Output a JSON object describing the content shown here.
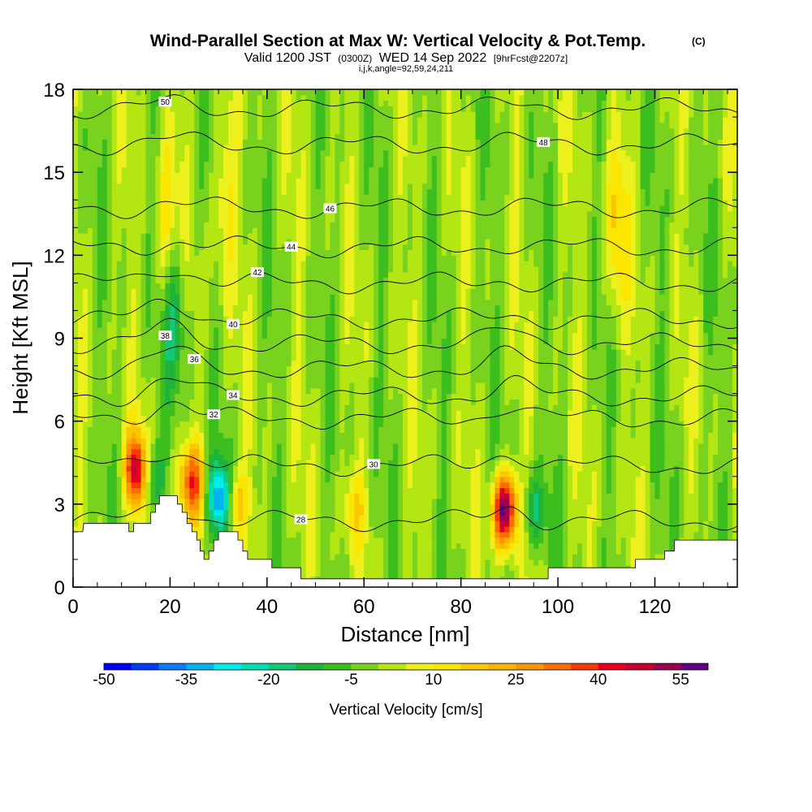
{
  "chart_data": {
    "type": "heatmap",
    "title": "Wind-Parallel Section at Max W: Vertical Velocity & Pot.Temp.",
    "title_mark": "(C)",
    "subtitle_main_a": "Valid 1200 JST",
    "subtitle_small_a": "(0300Z)",
    "subtitle_main_b": "WED 14 Sep 2022",
    "subtitle_small_b": "[9hrFcst@2207z]",
    "subtitle2": "i,j,k,angle=92,59,24,211",
    "xlabel": "Distance [nm]",
    "ylabel": "Height [Kft MSL]",
    "xlim": [
      0,
      137
    ],
    "ylim": [
      0,
      18
    ],
    "xticks": [
      "0",
      "20",
      "40",
      "60",
      "80",
      "100",
      "120"
    ],
    "yticks": [
      "0",
      "3",
      "6",
      "9",
      "12",
      "15",
      "18"
    ],
    "colorbar": {
      "label": "Vertical Velocity [cm/s]",
      "min": -50,
      "max": 60,
      "step": 5,
      "tick_labels": [
        "-50",
        "-35",
        "-20",
        "-5",
        "10",
        "25",
        "40",
        "55"
      ],
      "colors": [
        "#0000ff",
        "#0040f5",
        "#0a7cf5",
        "#00b4f0",
        "#00ecec",
        "#00dcb4",
        "#14c878",
        "#1eb43c",
        "#3cbe1e",
        "#78d21e",
        "#b4e614",
        "#eef01e",
        "#fae600",
        "#fac800",
        "#fab400",
        "#fa9600",
        "#fa6e00",
        "#f53c00",
        "#e6001e",
        "#c80032",
        "#a00050",
        "#640082"
      ]
    },
    "background_w": 0,
    "features": [
      {
        "kind": "updraft",
        "x": 13.2,
        "z": 4.2,
        "w": 50
      },
      {
        "kind": "downdraft",
        "x": 15.8,
        "z": 4.0,
        "w": -20
      },
      {
        "kind": "updraft",
        "x": 24.5,
        "z": 3.8,
        "w": 35
      },
      {
        "kind": "downdraft",
        "x": 30.2,
        "z": 3.2,
        "w": -35
      },
      {
        "kind": "updraft",
        "x": 33.5,
        "z": 3.0,
        "w": 20
      },
      {
        "kind": "updraft",
        "x": 58.0,
        "z": 2.8,
        "w": 12
      },
      {
        "kind": "updraft",
        "x": 89.0,
        "z": 2.8,
        "w": 60
      },
      {
        "kind": "downdraft",
        "x": 95.0,
        "z": 2.8,
        "w": -15
      },
      {
        "kind": "updraft",
        "x": 112.0,
        "z": 13.0,
        "w": 14
      },
      {
        "kind": "updraft",
        "x": 19.5,
        "z": 13.0,
        "w": 15
      },
      {
        "kind": "updraft",
        "x": 31.0,
        "z": 14.0,
        "w": 12
      },
      {
        "kind": "downdraft",
        "x": 21.0,
        "z": 10.0,
        "w": -18
      }
    ],
    "theta_contours": [
      {
        "label": "28",
        "base_z": 2.4
      },
      {
        "label": "30",
        "base_z": 4.4
      },
      {
        "label": "32",
        "base_z": 6.1
      },
      {
        "label": "34",
        "base_z": 6.9
      },
      {
        "label": "36",
        "base_z": 7.9
      },
      {
        "label": "38",
        "base_z": 8.8
      },
      {
        "label": "40",
        "base_z": 9.7
      },
      {
        "label": "42",
        "base_z": 11.0
      },
      {
        "label": "44",
        "base_z": 12.3
      },
      {
        "label": "46",
        "base_z": 13.7
      },
      {
        "label": "48",
        "base_z": 16.0
      },
      {
        "label": "50",
        "base_z": 17.3
      }
    ],
    "terrain": [
      [
        0,
        2.0
      ],
      [
        2,
        2.0
      ],
      [
        2.2,
        2.3
      ],
      [
        11.5,
        2.3
      ],
      [
        11.5,
        2.0
      ],
      [
        12.5,
        2.0
      ],
      [
        12.5,
        2.3
      ],
      [
        16,
        2.3
      ],
      [
        16,
        2.7
      ],
      [
        17,
        2.7
      ],
      [
        17,
        3.0
      ],
      [
        17.8,
        3.0
      ],
      [
        17.8,
        3.3
      ],
      [
        21.5,
        3.3
      ],
      [
        21.5,
        3.0
      ],
      [
        22.5,
        3.0
      ],
      [
        22.5,
        2.7
      ],
      [
        23.5,
        2.7
      ],
      [
        23.5,
        2.3
      ],
      [
        24.5,
        2.3
      ],
      [
        24.5,
        2.0
      ],
      [
        25.5,
        2.0
      ],
      [
        25.5,
        1.7
      ],
      [
        26.2,
        1.7
      ],
      [
        26.2,
        1.3
      ],
      [
        27,
        1.3
      ],
      [
        27,
        1.0
      ],
      [
        28,
        1.0
      ],
      [
        28,
        1.3
      ],
      [
        29,
        1.3
      ],
      [
        29,
        1.7
      ],
      [
        30,
        1.7
      ],
      [
        30,
        2.0
      ],
      [
        34,
        2.0
      ],
      [
        34,
        1.7
      ],
      [
        35,
        1.7
      ],
      [
        35,
        1.3
      ],
      [
        36,
        1.3
      ],
      [
        36,
        1.0
      ],
      [
        41,
        1.0
      ],
      [
        41,
        0.7
      ],
      [
        47,
        0.7
      ],
      [
        47,
        0.3
      ],
      [
        85,
        0.3
      ],
      [
        85,
        0.3
      ],
      [
        98,
        0.3
      ],
      [
        98,
        0.7
      ],
      [
        116,
        0.7
      ],
      [
        116,
        1.0
      ],
      [
        122,
        1.0
      ],
      [
        122,
        1.3
      ],
      [
        124,
        1.3
      ],
      [
        124,
        1.7
      ],
      [
        137,
        1.7
      ]
    ]
  }
}
